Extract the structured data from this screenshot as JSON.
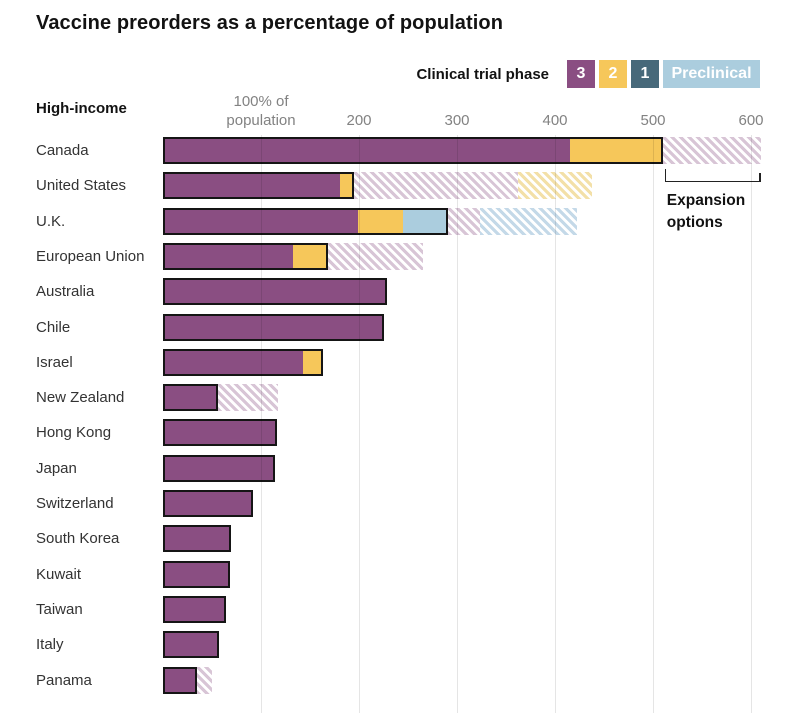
{
  "header": {
    "title": "Vaccine preorders as a percentage of population"
  },
  "legend": {
    "title": "Clinical trial phase",
    "entries": [
      {
        "label": "3",
        "phase": "3"
      },
      {
        "label": "2",
        "phase": "2"
      },
      {
        "label": "1",
        "phase": "1"
      },
      {
        "label": "Preclinical",
        "phase": "preclinical"
      }
    ]
  },
  "chart_data": {
    "type": "bar",
    "orientation": "horizontal",
    "title": "Vaccine preorders as a percentage of population",
    "group_label": "High-income",
    "unit": "percent of population",
    "x_axis": {
      "ticks": [
        {
          "value": 100,
          "label": "100% of\npopulation"
        },
        {
          "value": 200,
          "label": "200"
        },
        {
          "value": 300,
          "label": "300"
        },
        {
          "value": 400,
          "label": "400"
        },
        {
          "value": 500,
          "label": "500"
        },
        {
          "value": 600,
          "label": "600"
        }
      ],
      "max": 650,
      "grid": true
    },
    "annotation": {
      "label": "Expansion options"
    },
    "colors": {
      "phase_3": "#8a4e82",
      "phase_2": "#f6c75a",
      "phase_1": "#47697a",
      "phase_preclinical": "#abcdde",
      "hatch_3": "#d8c5d6",
      "hatch_2": "#f3e0a8",
      "hatch_preclinical": "#c4d9e8",
      "bar_border": "#151515",
      "grid": "#dddddd",
      "title_text": "#121212",
      "axis_text": "#828282",
      "label_text": "#333333"
    },
    "countries": [
      {
        "name": "Canada",
        "confirmed": [
          {
            "phase": "3",
            "value": 415
          },
          {
            "phase": "2",
            "value": 95
          }
        ],
        "expansion": [
          {
            "phase": "3",
            "value": 100
          }
        ]
      },
      {
        "name": "United States",
        "confirmed": [
          {
            "phase": "3",
            "value": 181
          },
          {
            "phase": "2",
            "value": 14
          }
        ],
        "expansion": [
          {
            "phase": "3",
            "value": 167
          },
          {
            "phase": "2",
            "value": 76
          }
        ]
      },
      {
        "name": "U.K.",
        "confirmed": [
          {
            "phase": "3",
            "value": 199
          },
          {
            "phase": "2",
            "value": 46
          },
          {
            "phase": "preclinical",
            "value": 46
          }
        ],
        "expansion": [
          {
            "phase": "3",
            "value": 32
          },
          {
            "phase": "preclinical",
            "value": 99
          }
        ]
      },
      {
        "name": "European Union",
        "confirmed": [
          {
            "phase": "3",
            "value": 133
          },
          {
            "phase": "2",
            "value": 35
          }
        ],
        "expansion": [
          {
            "phase": "3",
            "value": 97
          }
        ]
      },
      {
        "name": "Australia",
        "confirmed": [
          {
            "phase": "3",
            "value": 229
          }
        ],
        "expansion": []
      },
      {
        "name": "Chile",
        "confirmed": [
          {
            "phase": "3",
            "value": 226
          }
        ],
        "expansion": []
      },
      {
        "name": "Israel",
        "confirmed": [
          {
            "phase": "3",
            "value": 143
          },
          {
            "phase": "2",
            "value": 20
          }
        ],
        "expansion": []
      },
      {
        "name": "New Zealand",
        "confirmed": [
          {
            "phase": "3",
            "value": 56
          }
        ],
        "expansion": [
          {
            "phase": "3",
            "value": 61
          }
        ]
      },
      {
        "name": "Hong Kong",
        "confirmed": [
          {
            "phase": "3",
            "value": 116
          }
        ],
        "expansion": []
      },
      {
        "name": "Japan",
        "confirmed": [
          {
            "phase": "3",
            "value": 114
          }
        ],
        "expansion": []
      },
      {
        "name": "Switzerland",
        "confirmed": [
          {
            "phase": "3",
            "value": 92
          }
        ],
        "expansion": []
      },
      {
        "name": "South Korea",
        "confirmed": [
          {
            "phase": "3",
            "value": 69
          }
        ],
        "expansion": []
      },
      {
        "name": "Kuwait",
        "confirmed": [
          {
            "phase": "3",
            "value": 68
          }
        ],
        "expansion": []
      },
      {
        "name": "Taiwan",
        "confirmed": [
          {
            "phase": "3",
            "value": 64
          }
        ],
        "expansion": []
      },
      {
        "name": "Italy",
        "confirmed": [
          {
            "phase": "3",
            "value": 57
          }
        ],
        "expansion": []
      },
      {
        "name": "Panama",
        "confirmed": [
          {
            "phase": "3",
            "value": 35
          }
        ],
        "expansion": [
          {
            "phase": "3",
            "value": 15
          }
        ]
      }
    ]
  }
}
